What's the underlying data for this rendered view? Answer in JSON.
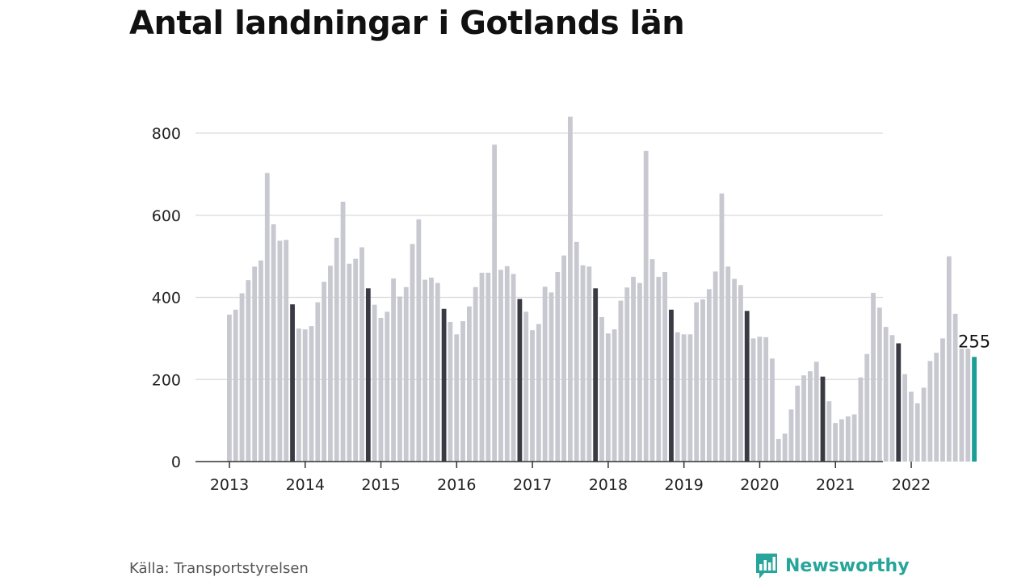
{
  "title": "Antal landningar i Gotlands län",
  "source": "Källa: Transportstyrelsen",
  "brand": {
    "name": "Newsworthy",
    "icon": "chart-bubble-icon"
  },
  "colors": {
    "bar": "#c8c8d0",
    "highlight": "#3a3a44",
    "latest": "#1a9e96",
    "grid": "#d9d9d9",
    "axis": "#333333",
    "brand": "#27a59a"
  },
  "chart_data": {
    "type": "bar",
    "title": "Antal landningar i Gotlands län",
    "xlabel": "",
    "ylabel": "",
    "ylim": [
      0,
      880
    ],
    "yticks": [
      0,
      200,
      400,
      600,
      800
    ],
    "grid": true,
    "x_tick_labels": [
      "2013",
      "2014",
      "2015",
      "2016",
      "2017",
      "2018",
      "2019",
      "2020",
      "2021",
      "2022"
    ],
    "start": "2013-01",
    "frequency": "monthly",
    "highlight_month": "November",
    "values": [
      358,
      370,
      410,
      442,
      475,
      490,
      703,
      578,
      538,
      540,
      383,
      324,
      322,
      330,
      388,
      438,
      477,
      545,
      633,
      482,
      494,
      522,
      422,
      382,
      350,
      365,
      446,
      402,
      425,
      530,
      590,
      443,
      448,
      435,
      372,
      340,
      310,
      342,
      378,
      425,
      460,
      460,
      772,
      467,
      476,
      457,
      396,
      365,
      320,
      335,
      426,
      412,
      462,
      502,
      840,
      535,
      478,
      475,
      422,
      352,
      312,
      322,
      392,
      424,
      450,
      435,
      757,
      493,
      450,
      462,
      370,
      315,
      310,
      310,
      388,
      395,
      420,
      463,
      653,
      475,
      445,
      430,
      367,
      300,
      304,
      303,
      251,
      55,
      68,
      127,
      185,
      210,
      220,
      243,
      207,
      147,
      94,
      103,
      110,
      115,
      205,
      262,
      411,
      375,
      328,
      308,
      288,
      213,
      170,
      142,
      180,
      245,
      265,
      300,
      500,
      360,
      275,
      275,
      255
    ],
    "last_value_label": "255"
  }
}
